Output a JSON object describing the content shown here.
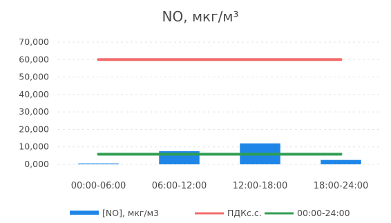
{
  "chart_data": {
    "type": "bar",
    "title": "NO, мкг/м³",
    "xlabel": "",
    "ylabel": "",
    "categories": [
      "00:00-06:00",
      "06:00-12:00",
      "12:00-18:00",
      "18:00-24:00"
    ],
    "ylim": [
      0,
      70000
    ],
    "yticks": [
      0,
      10000,
      20000,
      30000,
      40000,
      50000,
      60000,
      70000
    ],
    "ytick_labels": [
      "0,000",
      "10,000",
      "20,000",
      "30,000",
      "40,000",
      "50,000",
      "60,000",
      "70,000"
    ],
    "grid": true,
    "legend_position": "bottom",
    "series": [
      {
        "name": "[NO], мкг/м3",
        "kind": "bar",
        "color": "#1f86e8",
        "values": [
          500,
          7500,
          12000,
          2500
        ]
      },
      {
        "name": "ПДКс.с.",
        "kind": "line",
        "color": "#f26b6b",
        "values": [
          60000,
          60000,
          60000,
          60000
        ]
      },
      {
        "name": "00:00-24:00",
        "kind": "line",
        "color": "#2f9e52",
        "values": [
          5800,
          5800,
          5800,
          5800
        ]
      }
    ]
  }
}
